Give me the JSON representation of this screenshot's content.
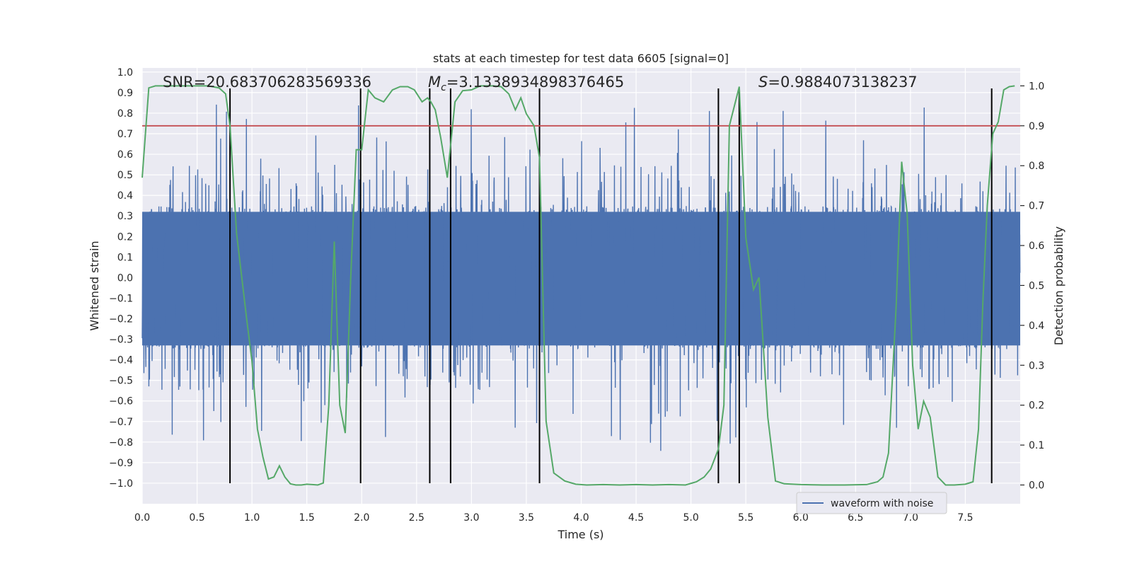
{
  "chart_data": {
    "type": "line",
    "title": "stats at each timestep for test data 6605 [signal=0]",
    "xlabel": "Time (s)",
    "ylabel": "Whitened strain",
    "y2label": "Detection probability",
    "xlim": [
      0,
      8
    ],
    "ylim": [
      -1.1,
      1.02
    ],
    "y2lim": [
      -0.047,
      1.045
    ],
    "x_ticks": [
      "0.0",
      "0.5",
      "1.0",
      "1.5",
      "2.0",
      "2.5",
      "3.0",
      "3.5",
      "4.0",
      "4.5",
      "5.0",
      "5.5",
      "6.0",
      "6.5",
      "7.0",
      "7.5"
    ],
    "y_ticks": [
      "−1.0",
      "−0.9",
      "−0.8",
      "−0.7",
      "−0.6",
      "−0.5",
      "−0.4",
      "−0.3",
      "−0.2",
      "−0.1",
      "0.0",
      "0.1",
      "0.2",
      "0.3",
      "0.4",
      "0.5",
      "0.6",
      "0.7",
      "0.8",
      "0.9",
      "1.0"
    ],
    "y2_ticks": [
      "0.0",
      "0.1",
      "0.2",
      "0.3",
      "0.4",
      "0.5",
      "0.6",
      "0.7",
      "0.8",
      "0.9",
      "1.0"
    ],
    "annotations": {
      "snr": "SNR=20.683706283569336",
      "mc_symbol": "M",
      "mc_sub": "c",
      "mc_value": "=3.1338934898376465",
      "s_symbol": "S",
      "s_value": "=0.9884073138237"
    },
    "legend": {
      "label": "waveform with noise",
      "placement": "lower right"
    },
    "threshold": {
      "axis": "y2",
      "value": 0.9,
      "color": "#c44e52"
    },
    "vertical_lines": {
      "x": [
        0.8,
        1.99,
        2.62,
        2.81,
        3.62,
        5.25,
        5.44,
        7.74
      ],
      "y_from": -1.0,
      "y_to": 0.92,
      "color": "#000000"
    },
    "series": [
      {
        "name": "waveform with noise",
        "axis": "y1",
        "style": "dense noise band",
        "color": "#4c72b0",
        "sample_rate": 512,
        "envelope_typical": 0.33,
        "peak_max": 0.92,
        "peak_min": -1.0
      },
      {
        "axis": "y2",
        "color": "#55a868",
        "x": [
          0.0,
          0.06,
          0.12,
          0.2,
          0.3,
          0.4,
          0.5,
          0.6,
          0.7,
          0.76,
          0.8,
          0.86,
          0.95,
          1.0,
          1.05,
          1.1,
          1.15,
          1.2,
          1.25,
          1.3,
          1.35,
          1.4,
          1.45,
          1.5,
          1.55,
          1.6,
          1.65,
          1.7,
          1.75,
          1.8,
          1.85,
          1.9,
          1.95,
          2.0,
          2.06,
          2.12,
          2.2,
          2.28,
          2.35,
          2.42,
          2.48,
          2.55,
          2.6,
          2.63,
          2.67,
          2.72,
          2.78,
          2.85,
          2.92,
          3.0,
          3.08,
          3.15,
          3.2,
          3.27,
          3.34,
          3.4,
          3.45,
          3.5,
          3.57,
          3.62,
          3.68,
          3.75,
          3.85,
          3.95,
          4.05,
          4.2,
          4.35,
          4.5,
          4.65,
          4.8,
          4.95,
          5.05,
          5.12,
          5.18,
          5.25,
          5.3,
          5.35,
          5.44,
          5.5,
          5.57,
          5.62,
          5.7,
          5.77,
          5.85,
          6.0,
          6.2,
          6.4,
          6.6,
          6.7,
          6.75,
          6.8,
          6.87,
          6.92,
          6.97,
          7.02,
          7.07,
          7.12,
          7.18,
          7.25,
          7.32,
          7.4,
          7.5,
          7.57,
          7.62,
          7.66,
          7.7,
          7.75,
          7.8,
          7.85,
          7.9,
          7.95
        ],
        "values": [
          0.77,
          0.995,
          1.0,
          1.0,
          1.0,
          1.0,
          1.0,
          1.0,
          0.995,
          0.98,
          0.9,
          0.63,
          0.42,
          0.31,
          0.14,
          0.07,
          0.015,
          0.02,
          0.048,
          0.02,
          0.003,
          0.0,
          0.0,
          0.002,
          0.001,
          0.0,
          0.005,
          0.2,
          0.61,
          0.2,
          0.13,
          0.52,
          0.84,
          0.84,
          0.99,
          0.97,
          0.96,
          0.99,
          0.998,
          0.998,
          0.99,
          0.96,
          0.97,
          0.96,
          0.94,
          0.87,
          0.77,
          0.96,
          0.988,
          0.99,
          1.0,
          1.0,
          1.0,
          0.998,
          0.98,
          0.94,
          0.97,
          0.93,
          0.9,
          0.82,
          0.16,
          0.03,
          0.01,
          0.002,
          0.0,
          0.001,
          0.0,
          0.001,
          0.0,
          0.001,
          0.0,
          0.008,
          0.02,
          0.04,
          0.09,
          0.2,
          0.9,
          0.998,
          0.62,
          0.49,
          0.52,
          0.17,
          0.01,
          0.003,
          0.001,
          0.0,
          0.0,
          0.001,
          0.008,
          0.02,
          0.08,
          0.45,
          0.81,
          0.68,
          0.3,
          0.14,
          0.21,
          0.17,
          0.02,
          0.0,
          0.0,
          0.002,
          0.008,
          0.14,
          0.46,
          0.7,
          0.88,
          0.91,
          0.99,
          0.998,
          1.0
        ]
      }
    ]
  }
}
